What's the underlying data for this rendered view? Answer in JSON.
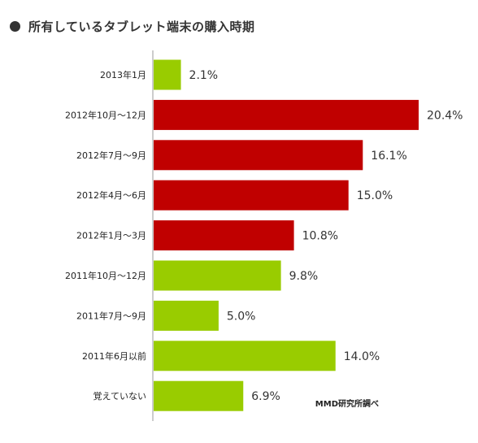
{
  "title": "所有しているタブレット端末の購入時期",
  "source": "MMD研究所調べ",
  "colors": {
    "highlight": "#c00000",
    "normal": "#99cc00"
  },
  "chart_data": {
    "type": "bar",
    "orientation": "horizontal",
    "title": "所有しているタブレット端末の購入時期",
    "xlabel": "",
    "ylabel": "",
    "unit": "%",
    "categories": [
      "2013年1月",
      "2012年10月～12月",
      "2012年7月～9月",
      "2012年4月～6月",
      "2012年1月～3月",
      "2011年10月～12月",
      "2011年7月～9月",
      "2011年6月以前",
      "覚えていない"
    ],
    "values": [
      2.1,
      20.4,
      16.1,
      15.0,
      10.8,
      9.8,
      5.0,
      14.0,
      6.9
    ],
    "value_labels": [
      "2.1%",
      "20.4%",
      "16.1%",
      "15.0%",
      "10.8%",
      "9.8%",
      "5.0%",
      "14.0%",
      "6.9%"
    ],
    "bar_colors": [
      "green",
      "red",
      "red",
      "red",
      "red",
      "green",
      "green",
      "green",
      "green"
    ],
    "xlim": [
      0,
      20.4
    ],
    "grid": false,
    "legend": "none"
  }
}
